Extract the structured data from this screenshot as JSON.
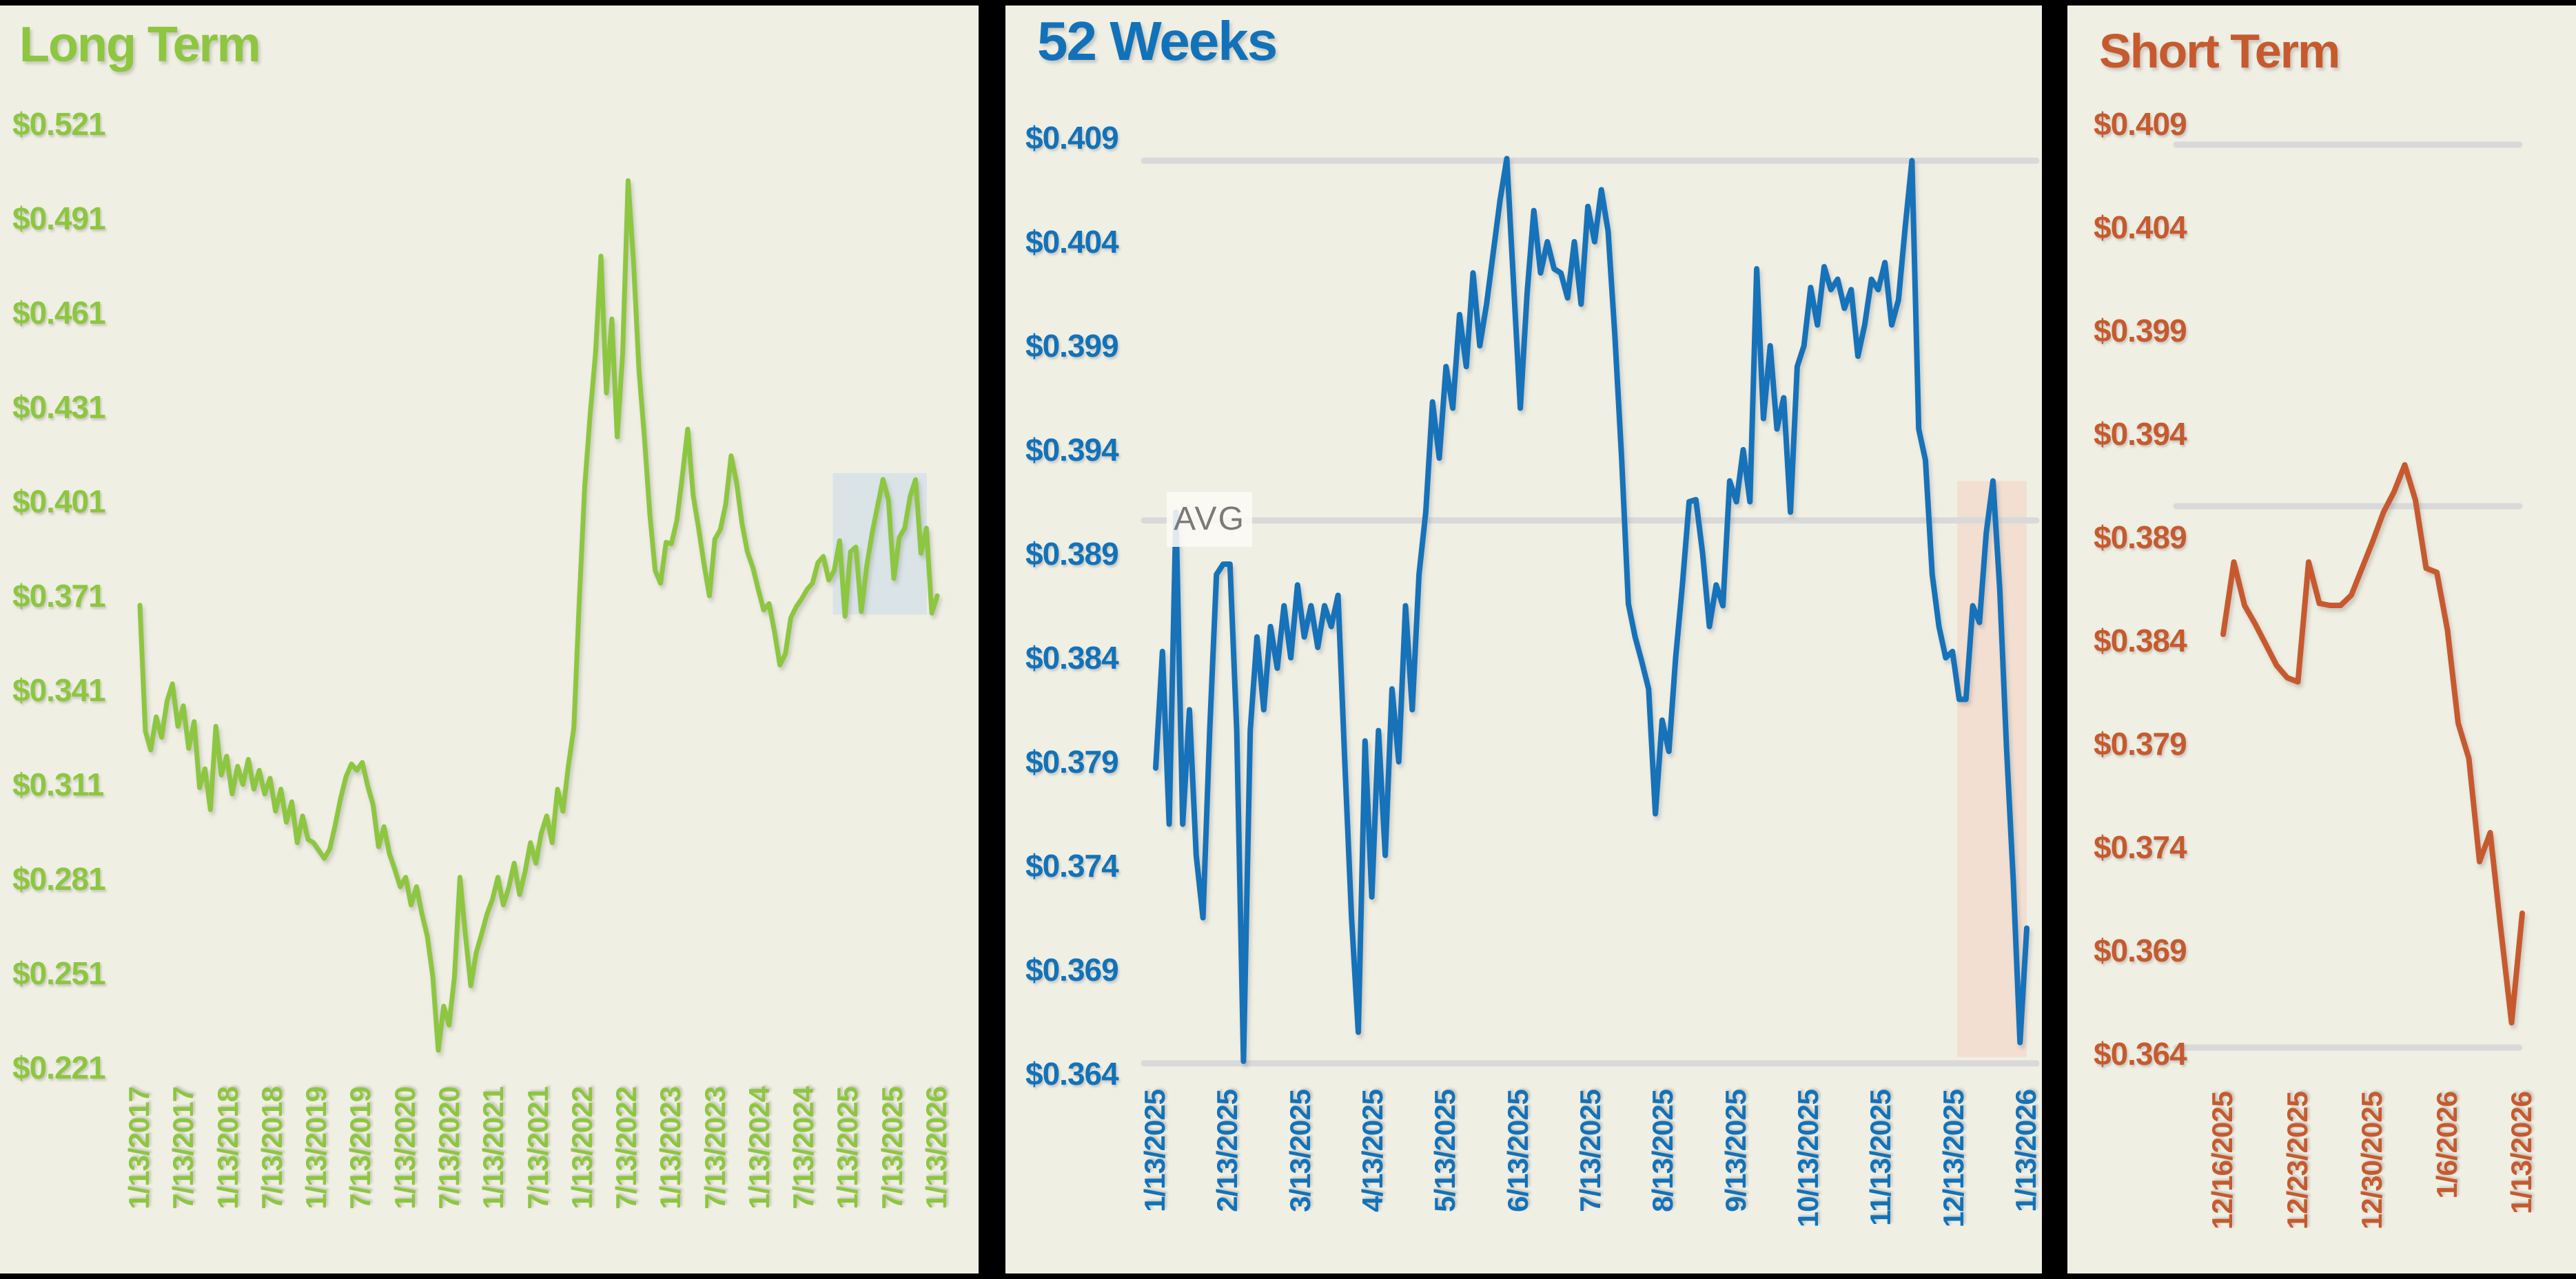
{
  "page": {
    "background": "#F0EFE4",
    "frame_color": "#000000",
    "gridline_color": "#D9D9D9",
    "avg_label_text_color": "#7a7a7a"
  },
  "chart_data": [
    {
      "type": "line",
      "title": "Long Term",
      "color": "#8DC63F",
      "x_range": [
        "1/13/2017",
        "1/13/2026"
      ],
      "ylim": [
        0.221,
        0.521
      ],
      "y_tick_labels": [
        "$0.521",
        "$0.491",
        "$0.461",
        "$0.431",
        "$0.401",
        "$0.371",
        "$0.341",
        "$0.311",
        "$0.281",
        "$0.251",
        "$0.221"
      ],
      "x_tick_labels": [
        "1/13/2017",
        "7/13/2017",
        "1/13/2018",
        "7/13/2018",
        "1/13/2019",
        "7/13/2019",
        "1/13/2020",
        "7/13/2020",
        "1/13/2021",
        "7/13/2021",
        "1/13/2022",
        "7/13/2022",
        "1/13/2023",
        "7/13/2023",
        "1/13/2024",
        "7/13/2024",
        "1/13/2025",
        "7/13/2025",
        "1/13/2026"
      ],
      "values": [
        0.368,
        0.328,
        0.322,
        0.3325,
        0.326,
        0.3375,
        0.343,
        0.3295,
        0.336,
        0.3225,
        0.331,
        0.31,
        0.316,
        0.303,
        0.3295,
        0.314,
        0.32,
        0.308,
        0.3168,
        0.311,
        0.319,
        0.3095,
        0.3155,
        0.308,
        0.313,
        0.3025,
        0.3095,
        0.299,
        0.3055,
        0.2925,
        0.301,
        0.2935,
        0.2925,
        0.29,
        0.2875,
        0.2905,
        0.298,
        0.3065,
        0.3135,
        0.3175,
        0.3155,
        0.318,
        0.3105,
        0.3045,
        0.2912,
        0.2976,
        0.289,
        0.284,
        0.2785,
        0.2815,
        0.2727,
        0.2785,
        0.2698,
        0.2627,
        0.25,
        0.2265,
        0.2405,
        0.2345,
        0.25,
        0.2815,
        0.2635,
        0.247,
        0.2575,
        0.2635,
        0.2698,
        0.2745,
        0.2815,
        0.2727,
        0.2782,
        0.286,
        0.276,
        0.2832,
        0.2925,
        0.286,
        0.2955,
        0.301,
        0.2925,
        0.3095,
        0.3025,
        0.317,
        0.329,
        0.369,
        0.4055,
        0.4285,
        0.448,
        0.479,
        0.4355,
        0.459,
        0.4215,
        0.448,
        0.503,
        0.4775,
        0.443,
        0.4215,
        0.397,
        0.379,
        0.375,
        0.388,
        0.3875,
        0.395,
        0.409,
        0.424,
        0.403,
        0.3925,
        0.381,
        0.371,
        0.389,
        0.392,
        0.4,
        0.4155,
        0.407,
        0.394,
        0.385,
        0.38,
        0.373,
        0.3665,
        0.3685,
        0.3595,
        0.349,
        0.3525,
        0.364,
        0.3675,
        0.37,
        0.373,
        0.375,
        0.3815,
        0.3835,
        0.376,
        0.379,
        0.3885,
        0.3645,
        0.385,
        0.3865,
        0.366,
        0.3805,
        0.391,
        0.3995,
        0.408,
        0.4015,
        0.3765,
        0.3895,
        0.3925,
        0.4025,
        0.4079,
        0.3845,
        0.3925,
        0.3655,
        0.371
      ],
      "gridlines": [],
      "highlight_box": {
        "start_frac": 0.869,
        "end_frac": 0.987,
        "price_top": 0.41,
        "price_bottom": 0.365,
        "color": "#DAE4E7"
      }
    },
    {
      "type": "line",
      "title": "52 Weeks",
      "color": "#1272B9",
      "x_range": [
        "1/13/2025",
        "1/13/2026"
      ],
      "ylim": [
        0.364,
        0.409
      ],
      "y_tick_labels": [
        "$0.409",
        "$0.404",
        "$0.399",
        "$0.394",
        "$0.389",
        "$0.384",
        "$0.379",
        "$0.374",
        "$0.369",
        "$0.364"
      ],
      "x_tick_labels": [
        "1/13/2025",
        "2/13/2025",
        "3/13/2025",
        "4/13/2025",
        "5/13/2025",
        "6/13/2025",
        "7/13/2025",
        "8/13/2025",
        "9/13/2025",
        "10/13/2025",
        "11/13/2025",
        "12/13/2025",
        "1/13/2026"
      ],
      "values": [
        0.3787,
        0.3843,
        0.376,
        0.391,
        0.376,
        0.3815,
        0.3745,
        0.3715,
        0.3805,
        0.388,
        0.3885,
        0.3885,
        0.3805,
        0.3646,
        0.3805,
        0.385,
        0.3815,
        0.3855,
        0.3835,
        0.3865,
        0.384,
        0.3875,
        0.385,
        0.3865,
        0.3845,
        0.3865,
        0.3855,
        0.387,
        0.379,
        0.3715,
        0.366,
        0.38,
        0.3725,
        0.3805,
        0.3745,
        0.3825,
        0.379,
        0.3865,
        0.3815,
        0.388,
        0.391,
        0.3963,
        0.3936,
        0.398,
        0.396,
        0.4005,
        0.398,
        0.4025,
        0.399,
        0.401,
        0.4035,
        0.406,
        0.408,
        0.402,
        0.396,
        0.4015,
        0.4055,
        0.4025,
        0.404,
        0.4027,
        0.4025,
        0.4013,
        0.404,
        0.401,
        0.4057,
        0.404,
        0.4065,
        0.4045,
        0.3995,
        0.3936,
        0.3866,
        0.385,
        0.3838,
        0.3825,
        0.3765,
        0.381,
        0.3795,
        0.384,
        0.3875,
        0.3915,
        0.3916,
        0.389,
        0.3855,
        0.3875,
        0.3865,
        0.3925,
        0.3915,
        0.394,
        0.3915,
        0.4027,
        0.3955,
        0.399,
        0.395,
        0.3965,
        0.391,
        0.398,
        0.399,
        0.4018,
        0.4,
        0.4028,
        0.4017,
        0.4022,
        0.4008,
        0.4017,
        0.3985,
        0.4,
        0.4022,
        0.4017,
        0.403,
        0.4,
        0.4012,
        0.4047,
        0.4079,
        0.395,
        0.3935,
        0.388,
        0.3855,
        0.384,
        0.3843,
        0.382,
        0.382,
        0.3865,
        0.3857,
        0.39,
        0.3925,
        0.3873,
        0.3797,
        0.3733,
        0.3655,
        0.371
      ],
      "gridlines": [
        {
          "value": 0.4079,
          "label": ""
        },
        {
          "value": 0.3906,
          "label": "AVG"
        },
        {
          "value": 0.3645,
          "label": ""
        }
      ],
      "highlight_band": {
        "start_frac": 0.92,
        "end_frac": 1.0,
        "price_top": 0.3925,
        "price_bottom": 0.3648,
        "color": "#F2DFD2"
      }
    },
    {
      "type": "line",
      "title": "Short Term",
      "color": "#C65A2E",
      "x_range": [
        "12/16/2025",
        "1/13/2026"
      ],
      "ylim": [
        0.364,
        0.409
      ],
      "y_tick_labels": [
        "$0.409",
        "$0.404",
        "$0.399",
        "$0.394",
        "$0.389",
        "$0.384",
        "$0.379",
        "$0.374",
        "$0.369",
        "$0.364"
      ],
      "x_tick_labels": [
        "12/16/2025",
        "12/23/2025",
        "12/30/2025",
        "1/6/2026",
        "1/13/2026"
      ],
      "values": [
        0.3843,
        0.3878,
        0.3857,
        0.3848,
        0.3838,
        0.3828,
        0.3822,
        0.382,
        0.3878,
        0.3858,
        0.3857,
        0.3857,
        0.3862,
        0.3875,
        0.3888,
        0.3902,
        0.3912,
        0.3925,
        0.3908,
        0.3875,
        0.3873,
        0.3845,
        0.38,
        0.3783,
        0.3733,
        0.3747,
        0.37,
        0.3655,
        0.3708
      ],
      "gridlines": [
        {
          "value": 0.408,
          "label": ""
        },
        {
          "value": 0.3905,
          "label": ""
        },
        {
          "value": 0.3643,
          "label": ""
        }
      ]
    }
  ]
}
